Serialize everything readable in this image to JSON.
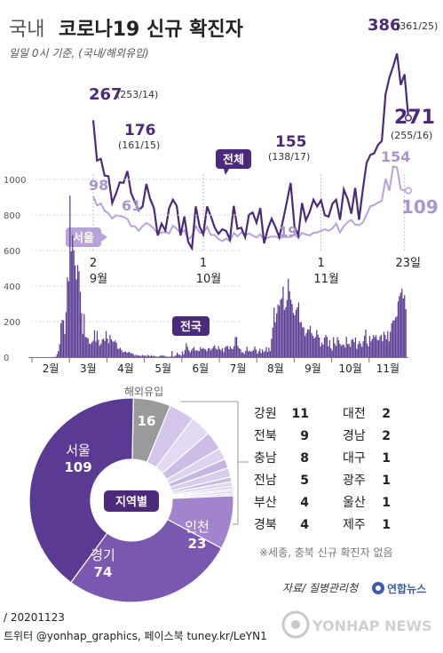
{
  "header": {
    "title_prefix": "국내",
    "title_main": "코로나19 신규 확진자",
    "subtitle": "일일 0시 기준, (국내/해외유입)"
  },
  "colors": {
    "dark_purple": "#4b2a7b",
    "mid_purple": "#7a58b0",
    "light_purple": "#b8a3d9",
    "pale_purple": "#dcd0ee",
    "grey": "#9a9a9a",
    "grid": "#cfcfcf",
    "text": "#333333"
  },
  "chart_data": [
    {
      "type": "line",
      "name": "daily-sep-nov",
      "x_ticks": [
        {
          "day": 2,
          "label": "2",
          "month_label": "9월"
        },
        {
          "day": 31,
          "label": "1",
          "month_label": "10월"
        },
        {
          "day": 62,
          "label": "1",
          "month_label": "11월"
        },
        {
          "day": 84,
          "label": "23일",
          "month_label": ""
        }
      ],
      "series": [
        {
          "name": "전체",
          "values": [
            267,
            195,
            198,
            168,
            167,
            119,
            136,
            156,
            155,
            176,
            136,
            121,
            106,
            113,
            153,
            126,
            110,
            61,
            82,
            70,
            110,
            125,
            114,
            61,
            95,
            50,
            38,
            113,
            77,
            63,
            113,
            95,
            75,
            64,
            72,
            69,
            54,
            114,
            73,
            75,
            58,
            98,
            102,
            84,
            110,
            47,
            73,
            91,
            76,
            58,
            89,
            121,
            155,
            77,
            61,
            119,
            88,
            103,
            125,
            113,
            124,
            97,
            95,
            118,
            125,
            89,
            143,
            126,
            100,
            146,
            89,
            143,
            191,
            205,
            208,
            223,
            230,
            313,
            343,
            363,
            386,
            330,
            349,
            271
          ]
        },
        {
          "name": "서울",
          "values": [
            98,
            80,
            84,
            70,
            65,
            55,
            61,
            60,
            58,
            54,
            40,
            40,
            31,
            40,
            46,
            42,
            35,
            25,
            28,
            29,
            26,
            41,
            35,
            26,
            32,
            14,
            21,
            40,
            28,
            26,
            39,
            23,
            23,
            15,
            11,
            16,
            11,
            27,
            20,
            28,
            22,
            26,
            22,
            18,
            24,
            14,
            18,
            20,
            20,
            17,
            19,
            19,
            19,
            24,
            17,
            27,
            24,
            22,
            27,
            28,
            31,
            34,
            31,
            36,
            45,
            28,
            40,
            48,
            52,
            43,
            42,
            47,
            63,
            79,
            81,
            86,
            89,
            132,
            109,
            156,
            154,
            112,
            109,
            109
          ]
        }
      ],
      "annotations": [
        {
          "value": "267",
          "sub": "(253/14)"
        },
        {
          "value": "176",
          "sub": "(161/15)"
        },
        {
          "value": "155",
          "sub": "(138/17)"
        },
        {
          "value": "386",
          "sub": "(361/25)"
        },
        {
          "value": "271",
          "sub": "(255/16)"
        },
        {
          "value": "98"
        },
        {
          "value": "61"
        },
        {
          "value": "19"
        },
        {
          "value": "154"
        },
        {
          "value": "109"
        }
      ],
      "series_labels": {
        "total": "전체",
        "seoul": "서울"
      }
    },
    {
      "type": "bar",
      "name": "national-feb-nov",
      "y_ticks": [
        0,
        200,
        400,
        600,
        800,
        1000
      ],
      "ylim": [
        0,
        1050
      ],
      "months": [
        "2월",
        "3월",
        "4월",
        "5월",
        "6월",
        "7월",
        "8월",
        "9월",
        "10월",
        "11월"
      ],
      "label": "전국",
      "values": [
        0,
        0,
        0,
        0,
        0,
        0,
        0,
        0,
        0,
        0,
        0,
        0,
        0,
        0,
        0,
        0,
        1,
        1,
        2,
        16,
        34,
        74,
        190,
        210,
        207,
        130,
        253,
        449,
        427,
        909,
        595,
        686,
        600,
        516,
        438,
        518,
        483,
        367,
        248,
        131,
        242,
        114,
        110,
        107,
        76,
        74,
        84,
        93,
        152,
        87,
        147,
        98,
        64,
        76,
        100,
        104,
        91,
        146,
        105,
        78,
        125,
        101,
        89,
        86,
        94,
        81,
        47,
        47,
        53,
        39,
        27,
        30,
        32,
        25,
        27,
        30,
        22,
        22,
        18,
        8,
        14,
        9,
        11,
        8,
        6,
        13,
        8,
        10,
        4,
        14,
        9,
        4,
        12,
        6,
        8,
        4,
        3,
        2,
        3,
        8,
        11,
        8,
        8,
        4,
        3,
        2,
        2,
        4,
        35,
        2,
        5,
        11,
        26,
        16,
        13,
        8,
        32,
        16,
        40,
        79,
        58,
        39,
        27,
        38,
        49,
        57,
        38,
        38,
        37,
        34,
        56,
        45,
        51,
        46,
        43,
        34,
        49,
        51,
        39,
        48,
        59,
        67,
        48,
        42,
        62,
        46,
        39,
        51,
        28,
        54,
        61,
        63,
        44,
        62,
        48,
        45,
        61,
        113,
        113,
        63,
        50,
        45,
        26,
        28,
        18,
        36,
        58,
        33,
        36,
        30,
        34,
        39,
        60,
        43,
        20,
        33,
        48,
        23,
        43,
        28,
        34,
        56,
        30,
        54,
        34,
        103,
        166,
        279,
        197,
        246,
        297,
        288,
        324,
        332,
        397,
        266,
        280,
        320,
        441,
        371,
        323,
        299,
        248,
        235,
        266,
        280,
        308,
        195,
        198,
        168,
        167,
        119,
        136,
        156,
        155,
        176,
        136,
        121,
        106,
        113,
        153,
        126,
        110,
        61,
        82,
        70,
        110,
        125,
        114,
        61,
        95,
        50,
        38,
        113,
        77,
        63,
        113,
        95,
        75,
        64,
        72,
        69,
        54,
        114,
        73,
        75,
        58,
        98,
        102,
        84,
        110,
        47,
        73,
        91,
        76,
        58,
        89,
        121,
        155,
        77,
        61,
        119,
        88,
        103,
        125,
        113,
        124,
        97,
        95,
        118,
        125,
        89,
        143,
        126,
        100,
        146,
        89,
        143,
        191,
        205,
        208,
        223,
        230,
        313,
        343,
        363,
        386,
        330,
        349,
        271
      ]
    },
    {
      "type": "pie",
      "name": "regional-donut",
      "center_label": "지역별",
      "slices": [
        {
          "label": "해외유입",
          "value": 16,
          "color": "#9a9a9a"
        },
        {
          "label": "강원",
          "value": 11,
          "color": "#d3c6ea"
        },
        {
          "label": "전북",
          "value": 9,
          "color": "#e3d9f2"
        },
        {
          "label": "충남",
          "value": 8,
          "color": "#cbbde6"
        },
        {
          "label": "전남",
          "value": 5,
          "color": "#ddd2ef"
        },
        {
          "label": "부산",
          "value": 4,
          "color": "#c5b5e3"
        },
        {
          "label": "경북",
          "value": 4,
          "color": "#d9cdee"
        },
        {
          "label": "대전",
          "value": 2,
          "color": "#c9bae5"
        },
        {
          "label": "경남",
          "value": 2,
          "color": "#dfd5f0"
        },
        {
          "label": "대구",
          "value": 1,
          "color": "#cdbfe8"
        },
        {
          "label": "광주",
          "value": 1,
          "color": "#e5dcf3"
        },
        {
          "label": "울산",
          "value": 1,
          "color": "#cfc2e9"
        },
        {
          "label": "제주",
          "value": 1,
          "color": "#e1d7f1"
        },
        {
          "label": "인천",
          "value": 23,
          "color": "#a184cb"
        },
        {
          "label": "경기",
          "value": 74,
          "color": "#7a58b0"
        },
        {
          "label": "서울",
          "value": 109,
          "color": "#5b3a94"
        }
      ]
    }
  ],
  "region_table": {
    "left": [
      {
        "name": "강원",
        "value": "11"
      },
      {
        "name": "전북",
        "value": "9"
      },
      {
        "name": "충남",
        "value": "8"
      },
      {
        "name": "전남",
        "value": "5"
      },
      {
        "name": "부산",
        "value": "4"
      },
      {
        "name": "경북",
        "value": "4"
      }
    ],
    "right": [
      {
        "name": "대전",
        "value": "2"
      },
      {
        "name": "경남",
        "value": "2"
      },
      {
        "name": "대구",
        "value": "1"
      },
      {
        "name": "광주",
        "value": "1"
      },
      {
        "name": "울산",
        "value": "1"
      },
      {
        "name": "제주",
        "value": "1"
      }
    ]
  },
  "donut_labels": {
    "overseas_label": "해외유입",
    "overseas_value": "16",
    "seoul_name": "서울",
    "seoul_value": "109",
    "incheon_name": "인천",
    "incheon_value": "23",
    "gyeonggi_name": "경기",
    "gyeonggi_value": "74"
  },
  "footer": {
    "note": "※세종, 충북 신규 확진자 없음",
    "source": "자료/ 질병관리청",
    "brand_small": "연합뉴스",
    "brand_large": "YONHAP NEWS",
    "date_line": "/ 20201123",
    "social_line": "트위터 @yonhap_graphics, 페이스북 tuney.kr/LeYN1"
  }
}
